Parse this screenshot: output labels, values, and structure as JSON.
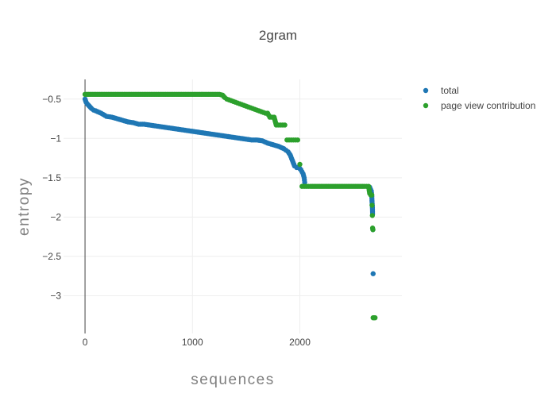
{
  "chart_data": {
    "type": "scatter",
    "title": "2gram",
    "xlabel": "sequences",
    "ylabel": "entropy",
    "xlim": [
      -200,
      2950
    ],
    "ylim": [
      -3.48,
      -0.25
    ],
    "xticks": [
      0,
      1000,
      2000
    ],
    "xtick_labels": [
      "0",
      "1000",
      "2000"
    ],
    "yticks": [
      -0.5,
      -1,
      -1.5,
      -2,
      -2.5,
      -3
    ],
    "ytick_labels": [
      "−0.5",
      "−1",
      "−1.5",
      "−2",
      "−2.5",
      "−3"
    ],
    "grid": true,
    "legend_position": "top-right",
    "series": [
      {
        "name": "total",
        "color": "#1f77b4",
        "x": [
          0,
          10,
          20,
          40,
          60,
          80,
          100,
          150,
          200,
          250,
          300,
          350,
          400,
          450,
          500,
          550,
          600,
          650,
          700,
          750,
          800,
          850,
          900,
          950,
          1000,
          1050,
          1100,
          1150,
          1200,
          1250,
          1300,
          1350,
          1400,
          1450,
          1500,
          1550,
          1600,
          1650,
          1700,
          1750,
          1800,
          1850,
          1870,
          1890,
          1910,
          1930,
          1950,
          1970,
          1990,
          2010,
          2030,
          2040,
          2045,
          2650,
          2665,
          2670,
          2672,
          2675,
          2677,
          2680,
          2682
        ],
        "y": [
          -0.5,
          -0.54,
          -0.56,
          -0.59,
          -0.62,
          -0.64,
          -0.65,
          -0.68,
          -0.72,
          -0.73,
          -0.75,
          -0.77,
          -0.79,
          -0.8,
          -0.82,
          -0.82,
          -0.83,
          -0.84,
          -0.85,
          -0.86,
          -0.87,
          -0.88,
          -0.89,
          -0.9,
          -0.91,
          -0.92,
          -0.93,
          -0.94,
          -0.95,
          -0.96,
          -0.97,
          -0.98,
          -0.99,
          -1.0,
          -1.01,
          -1.02,
          -1.02,
          -1.03,
          -1.06,
          -1.08,
          -1.1,
          -1.13,
          -1.15,
          -1.17,
          -1.21,
          -1.28,
          -1.35,
          -1.37,
          -1.37,
          -1.4,
          -1.45,
          -1.5,
          -1.56,
          -1.62,
          -1.67,
          -1.74,
          -1.81,
          -1.86,
          -1.96,
          -2.16,
          -2.72
        ]
      },
      {
        "name": "page view contribution",
        "color": "#2ca02c",
        "x": [
          0,
          50,
          100,
          150,
          200,
          250,
          300,
          350,
          400,
          450,
          500,
          550,
          600,
          650,
          700,
          750,
          800,
          850,
          900,
          950,
          1000,
          1050,
          1100,
          1150,
          1200,
          1250,
          1280,
          1300,
          1320,
          1340,
          1360,
          1380,
          1400,
          1420,
          1440,
          1460,
          1480,
          1500,
          1520,
          1540,
          1560,
          1580,
          1600,
          1620,
          1660,
          1680,
          1700,
          1720,
          1740,
          1760,
          1780,
          1800,
          1820,
          1840,
          1860,
          1880,
          1900,
          1920,
          1940,
          1960,
          1980,
          2000,
          2020,
          2040,
          2060,
          2080,
          2100,
          2150,
          2200,
          2250,
          2300,
          2350,
          2400,
          2450,
          2500,
          2550,
          2600,
          2640,
          2650,
          2660,
          2670,
          2672,
          2675,
          2677,
          2680,
          2682,
          2690,
          2700
        ],
        "y": [
          -0.44,
          -0.44,
          -0.44,
          -0.44,
          -0.44,
          -0.44,
          -0.44,
          -0.44,
          -0.44,
          -0.44,
          -0.44,
          -0.44,
          -0.44,
          -0.44,
          -0.44,
          -0.44,
          -0.44,
          -0.44,
          -0.44,
          -0.44,
          -0.44,
          -0.44,
          -0.44,
          -0.44,
          -0.44,
          -0.44,
          -0.45,
          -0.48,
          -0.5,
          -0.51,
          -0.52,
          -0.53,
          -0.54,
          -0.55,
          -0.56,
          -0.57,
          -0.58,
          -0.59,
          -0.6,
          -0.61,
          -0.62,
          -0.63,
          -0.64,
          -0.65,
          -0.67,
          -0.68,
          -0.68,
          -0.73,
          -0.73,
          -0.73,
          -0.83,
          -0.83,
          -0.83,
          -0.83,
          -0.83,
          -1.02,
          -1.02,
          -1.02,
          -1.02,
          -1.02,
          -1.02,
          -1.33,
          -1.61,
          -1.61,
          -1.61,
          -1.61,
          -1.61,
          -1.61,
          -1.61,
          -1.61,
          -1.61,
          -1.61,
          -1.61,
          -1.61,
          -1.61,
          -1.61,
          -1.61,
          -1.61,
          -1.7,
          -1.72,
          -1.72,
          -1.85,
          -1.98,
          -2.14,
          -2.16,
          -3.28,
          -3.28,
          -3.28
        ]
      }
    ]
  }
}
